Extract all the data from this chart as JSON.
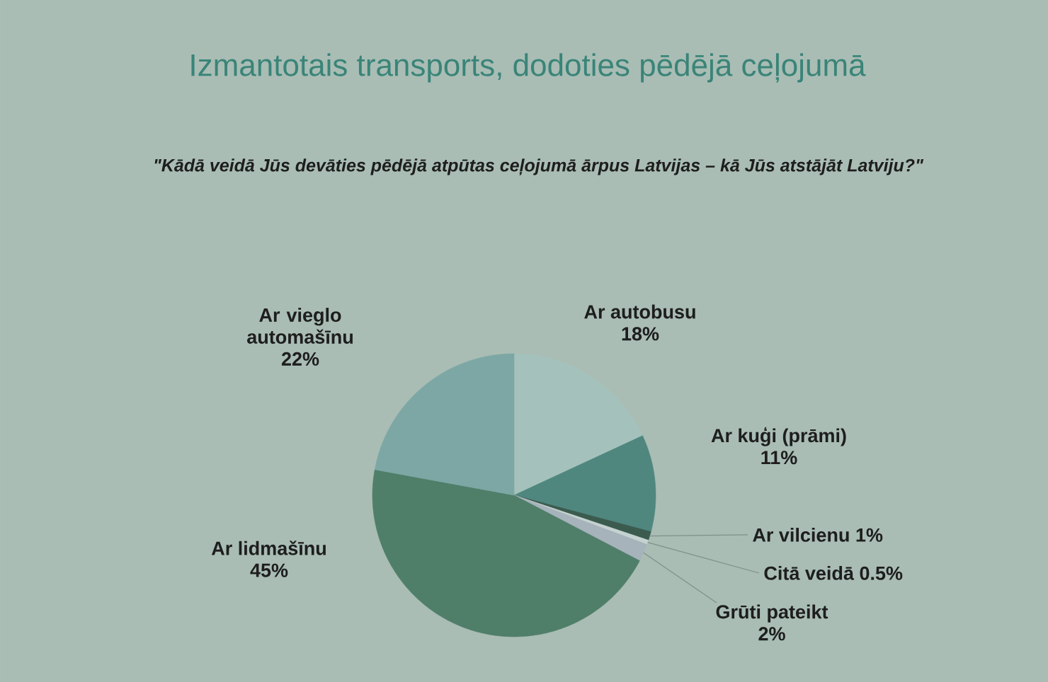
{
  "chart_data": {
    "type": "pie",
    "title": "Izmantotais transports, dodoties pēdējā ceļojumā",
    "subtitle": "\"Kādā veidā Jūs devāties pēdējā atpūtas ceļojumā ārpus Latvijas – kā Jūs atstājāt Latviju?\"",
    "categories": [
      "Ar autobusu",
      "Ar kuģi (prāmi)",
      "Ar vilcienu",
      "Citā veidā",
      "Grūti pateikt",
      "Ar lidmašīnu",
      "Ar vieglo automašīnu"
    ],
    "values": [
      18,
      11,
      1,
      0.5,
      2,
      45,
      22
    ],
    "value_labels": [
      "18%",
      "11%",
      "1%",
      "0.5%",
      "2%",
      "45%",
      "22%"
    ],
    "colors": [
      "#a4c2bb",
      "#4f877f",
      "#3b5b4f",
      "#c5d3d0",
      "#a6b3bb",
      "#4f7e69",
      "#7ca7a5"
    ]
  }
}
